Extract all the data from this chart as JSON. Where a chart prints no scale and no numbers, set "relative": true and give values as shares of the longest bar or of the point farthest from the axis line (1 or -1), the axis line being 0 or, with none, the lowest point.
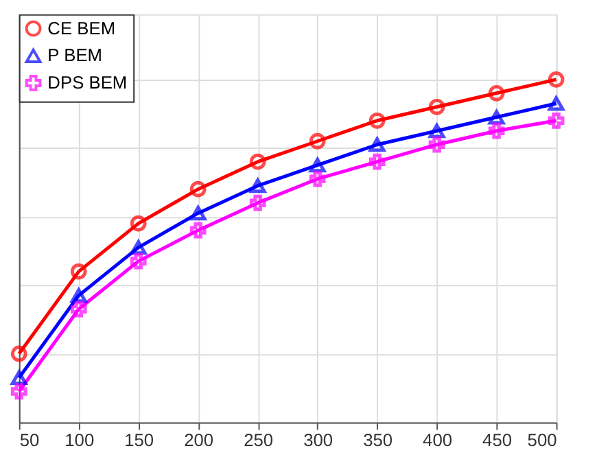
{
  "chart_data": {
    "type": "line",
    "relative": true,
    "x": [
      50,
      100,
      150,
      200,
      250,
      300,
      350,
      400,
      450,
      500
    ],
    "xlim": [
      50,
      500
    ],
    "xticks": [
      50,
      100,
      150,
      200,
      250,
      300,
      350,
      400,
      450,
      500
    ],
    "grid": true,
    "legend": "top left",
    "line_style": "solid",
    "series": [
      {
        "name": "CE BEM",
        "color": "#ff0000",
        "marker": "circle",
        "values": [
          0.2,
          0.44,
          0.58,
          0.68,
          0.76,
          0.82,
          0.88,
          0.92,
          0.96,
          1.0
        ]
      },
      {
        "name": "P BEM",
        "color": "#0000ff",
        "marker": "triangle",
        "values": [
          0.13,
          0.37,
          0.51,
          0.61,
          0.69,
          0.75,
          0.81,
          0.85,
          0.89,
          0.93
        ]
      },
      {
        "name": "DPS BEM",
        "color": "#ff00ff",
        "marker": "cross",
        "values": [
          0.09,
          0.33,
          0.47,
          0.56,
          0.64,
          0.71,
          0.76,
          0.81,
          0.85,
          0.88
        ]
      }
    ]
  }
}
